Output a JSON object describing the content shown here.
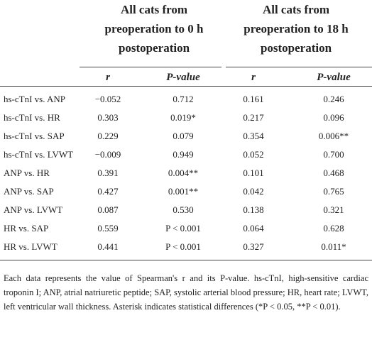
{
  "table": {
    "group_headers": [
      "All cats from preoperation to 0 h postoperation",
      "All cats from preoperation to 18 h postoperation"
    ],
    "columns": [
      "r",
      "P-value",
      "r",
      "P-value"
    ],
    "rows": [
      [
        "hs-cTnI vs. ANP",
        "−0.052",
        "0.712",
        "0.161",
        "0.246"
      ],
      [
        "hs-cTnI vs. HR",
        "0.303",
        "0.019*",
        "0.217",
        "0.096"
      ],
      [
        "hs-cTnI vs. SAP",
        "0.229",
        "0.079",
        "0.354",
        "0.006**"
      ],
      [
        "hs-cTnI vs. LVWT",
        "−0.009",
        "0.949",
        "0.052",
        "0.700"
      ],
      [
        "ANP vs. HR",
        "0.391",
        "0.004**",
        "0.101",
        "0.468"
      ],
      [
        "ANP vs. SAP",
        "0.427",
        "0.001**",
        "0.042",
        "0.765"
      ],
      [
        "ANP vs. LVWT",
        "0.087",
        "0.530",
        "0.138",
        "0.321"
      ],
      [
        "HR vs. SAP",
        "0.559",
        "P < 0.001",
        "0.064",
        "0.628"
      ],
      [
        "HR vs. LVWT",
        "0.441",
        "P < 0.001",
        "0.327",
        "0.011*"
      ]
    ]
  },
  "footnote": "Each data represents the value of Spearman's r and its P-value. hs-cTnI, high-sensitive cardiac troponin I; ANP, atrial natriuretic peptide; SAP, systolic arterial blood pressure; HR, heart rate; LVWT, left ventricular wall thickness. Asterisk indicates statistical differences (*P < 0.05, **P < 0.01)."
}
